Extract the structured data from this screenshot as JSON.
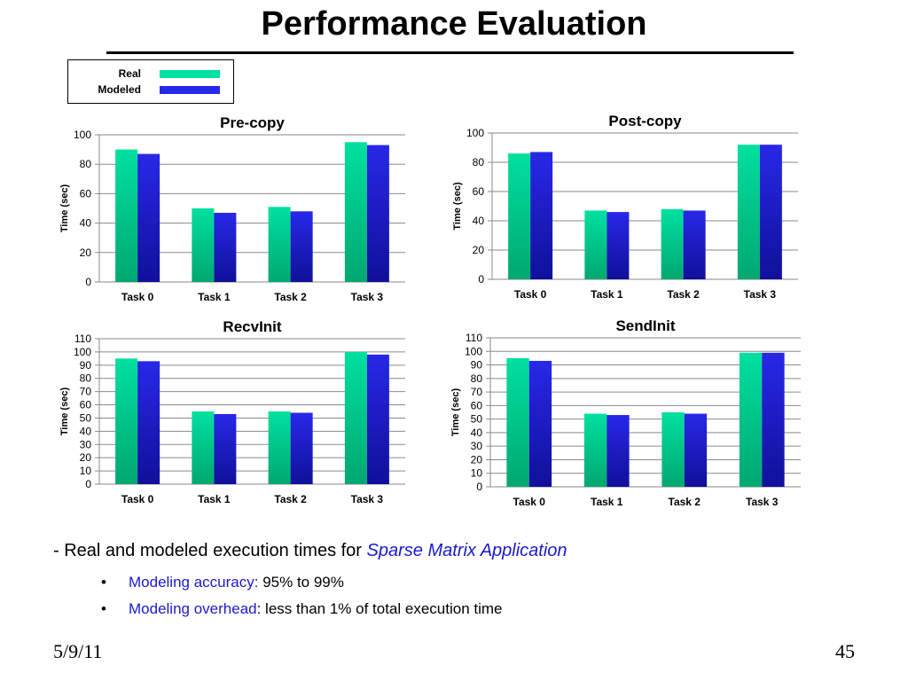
{
  "slide": {
    "title": "Performance Evaluation",
    "date": "5/9/11",
    "page_number": "45"
  },
  "colors": {
    "real": "#00e0a0",
    "real_dark": "#00a870",
    "modeled": "#2828e8",
    "modeled_dark": "#10109a",
    "accent_text": "#1a1acc"
  },
  "legend": {
    "items": [
      {
        "label": "Real",
        "color": "#00e0a0"
      },
      {
        "label": "Modeled",
        "color": "#2828e8"
      }
    ]
  },
  "caption": {
    "prefix": "- Real and modeled execution times for ",
    "emphasis": "Sparse Matrix Application"
  },
  "bullets": [
    {
      "bullet": "•",
      "label": "Modeling accuracy:",
      "text": " 95% to 99%"
    },
    {
      "bullet": "•",
      "label": "Modeling overhead",
      "text": ": less than 1% of total execution time"
    }
  ],
  "chart_data": [
    {
      "type": "bar",
      "title": "Pre-copy",
      "ylabel": "Time (sec)",
      "categories": [
        "Task 0",
        "Task 1",
        "Task 2",
        "Task 3"
      ],
      "ylim": [
        0,
        100
      ],
      "yticks": [
        0,
        20,
        40,
        60,
        80,
        100
      ],
      "grid": true,
      "series": [
        {
          "name": "Real",
          "values": [
            90,
            50,
            51,
            95
          ]
        },
        {
          "name": "Modeled",
          "values": [
            87,
            47,
            48,
            93
          ]
        }
      ]
    },
    {
      "type": "bar",
      "title": "Post-copy",
      "ylabel": "Time (sec)",
      "categories": [
        "Task 0",
        "Task 1",
        "Task 2",
        "Task 3"
      ],
      "ylim": [
        0,
        100
      ],
      "yticks": [
        0,
        20,
        40,
        60,
        80,
        100
      ],
      "grid": true,
      "series": [
        {
          "name": "Real",
          "values": [
            86,
            47,
            48,
            92
          ]
        },
        {
          "name": "Modeled",
          "values": [
            87,
            46,
            47,
            92
          ]
        }
      ]
    },
    {
      "type": "bar",
      "title": "RecvInit",
      "ylabel": "Time (sec)",
      "categories": [
        "Task 0",
        "Task 1",
        "Task 2",
        "Task 3"
      ],
      "ylim": [
        0,
        110
      ],
      "yticks": [
        0,
        10,
        20,
        30,
        40,
        50,
        60,
        70,
        80,
        90,
        100,
        110
      ],
      "grid": true,
      "series": [
        {
          "name": "Real",
          "values": [
            95,
            55,
            55,
            100
          ]
        },
        {
          "name": "Modeled",
          "values": [
            93,
            53,
            54,
            98
          ]
        }
      ]
    },
    {
      "type": "bar",
      "title": "SendInit",
      "ylabel": "Time (sec)",
      "categories": [
        "Task 0",
        "Task 1",
        "Task 2",
        "Task 3"
      ],
      "ylim": [
        0,
        110
      ],
      "yticks": [
        0,
        10,
        20,
        30,
        40,
        50,
        60,
        70,
        80,
        90,
        100,
        110
      ],
      "grid": true,
      "series": [
        {
          "name": "Real",
          "values": [
            95,
            54,
            55,
            99
          ]
        },
        {
          "name": "Modeled",
          "values": [
            93,
            53,
            54,
            99
          ]
        }
      ]
    }
  ]
}
